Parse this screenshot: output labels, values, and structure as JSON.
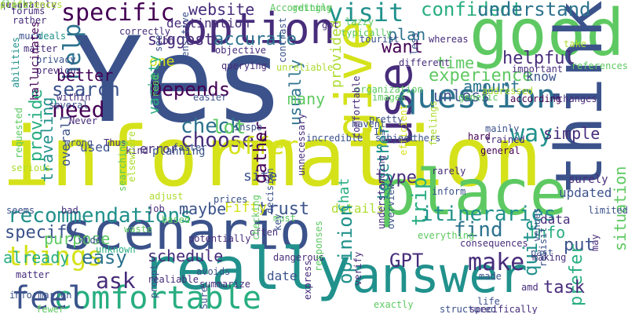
{
  "colors": {
    "background": "#ffffff",
    "palette": [
      "#440154",
      "#472d7b",
      "#3b528b",
      "#2c728e",
      "#21918c",
      "#28ae80",
      "#5ec962",
      "#addc30",
      "#d5e21a"
    ]
  },
  "words": [
    {
      "text": "information",
      "color": "#d5e21a"
    },
    {
      "text": "Yes",
      "color": "#3b528b"
    },
    {
      "text": "good",
      "color": "#5ec962"
    },
    {
      "text": "scenario",
      "color": "#3b528b"
    },
    {
      "text": "place",
      "color": "#5ec962"
    },
    {
      "text": "really",
      "color": "#21918c"
    },
    {
      "text": "answer",
      "color": "#21918c"
    },
    {
      "text": "think",
      "color": "#3b528b"
    },
    {
      "text": "give",
      "color": "#d5e21a"
    },
    {
      "text": "use",
      "color": "#472d7b"
    },
    {
      "text": "option",
      "color": "#472d7b"
    },
    {
      "text": "question",
      "color": "#2c728e"
    },
    {
      "text": "comfortable",
      "color": "#28ae80"
    },
    {
      "text": "feel",
      "color": "#3b528b"
    },
    {
      "text": "things",
      "color": "#d5e21a"
    },
    {
      "text": "specific",
      "color": "#440154"
    },
    {
      "text": "website",
      "color": "#472d7b"
    },
    {
      "text": "visit",
      "color": "#21918c"
    },
    {
      "text": "confident",
      "color": "#28ae80"
    },
    {
      "text": "understand",
      "color": "#2c728e"
    },
    {
      "text": "destination",
      "color": "#472d7b"
    },
    {
      "text": "plan",
      "color": "#2c728e"
    },
    {
      "text": "accurate",
      "color": "#2c728e"
    },
    {
      "text": "suggest",
      "color": "#472d7b"
    },
    {
      "text": "help",
      "color": "#2c728e"
    },
    {
      "text": "provide",
      "color": "#28ae80"
    },
    {
      "text": "search",
      "color": "#3b528b"
    },
    {
      "text": "need",
      "color": "#440154"
    },
    {
      "text": "better",
      "color": "#440154"
    },
    {
      "text": "one",
      "color": "#d5e21a"
    },
    {
      "text": "variety",
      "color": "#28ae80"
    },
    {
      "text": "Depends",
      "color": "#440154"
    },
    {
      "text": "experience",
      "color": "#5ec962"
    },
    {
      "text": "want",
      "color": "#440154"
    },
    {
      "text": "time",
      "color": "#5ec962"
    },
    {
      "text": "helpful",
      "color": "#472d7b"
    },
    {
      "text": "amount",
      "color": "#2c728e"
    },
    {
      "text": "know",
      "color": "#3b528b"
    },
    {
      "text": "usually",
      "color": "#2c728e"
    },
    {
      "text": "provided",
      "color": "#addc30"
    },
    {
      "text": "unless",
      "color": "#3b528b"
    },
    {
      "text": "many",
      "color": "#5ec962"
    },
    {
      "text": "check",
      "color": "#2c728e"
    },
    {
      "text": "choose",
      "color": "#472d7b"
    },
    {
      "text": "offer",
      "color": "#d5e21a"
    },
    {
      "text": "lot",
      "color": "#5ec962"
    },
    {
      "text": "way",
      "color": "#21918c"
    },
    {
      "text": "simple",
      "color": "#472d7b"
    },
    {
      "text": "trip",
      "color": "#28ae80"
    },
    {
      "text": "type",
      "color": "#472d7b"
    },
    {
      "text": "itineraries",
      "color": "#21918c"
    },
    {
      "text": "recommendations",
      "color": "#21918c"
    },
    {
      "text": "trust",
      "color": "#3b528b"
    },
    {
      "text": "details",
      "color": "#addc30"
    },
    {
      "text": "maybe",
      "color": "#3b528b"
    },
    {
      "text": "Fifty",
      "color": "#d5e21a"
    },
    {
      "text": "site",
      "color": "#3b528b"
    },
    {
      "text": "gather",
      "color": "#440154"
    },
    {
      "text": "Chat",
      "color": "#28ae80"
    },
    {
      "text": "GPT",
      "color": "#472d7b"
    },
    {
      "text": "find",
      "color": "#2c728e"
    },
    {
      "text": "make",
      "color": "#472d7b"
    },
    {
      "text": "opinion",
      "color": "#21918c"
    },
    {
      "text": "info",
      "color": "#28ae80"
    },
    {
      "text": "data",
      "color": "#472d7b"
    },
    {
      "text": "put",
      "color": "#3b528b"
    },
    {
      "text": "quite",
      "color": "#21918c"
    },
    {
      "text": "prefer",
      "color": "#28ae80"
    },
    {
      "text": "task",
      "color": "#472d7b"
    },
    {
      "text": "date",
      "color": "#3b528b"
    },
    {
      "text": "schedule",
      "color": "#472d7b"
    },
    {
      "text": "easy",
      "color": "#2c728e"
    },
    {
      "text": "ask",
      "color": "#472d7b"
    },
    {
      "text": "specify",
      "color": "#3b528b"
    },
    {
      "text": "purpose",
      "color": "#5ec962"
    },
    {
      "text": "already",
      "color": "#28ae80"
    },
    {
      "text": "used",
      "color": "#3b528b"
    },
    {
      "text": "traveling",
      "color": "#21918c"
    },
    {
      "text": "overall",
      "color": "#3b528b"
    },
    {
      "text": "error",
      "color": "#472d7b"
    },
    {
      "text": "d",
      "color": "#440154"
    },
    {
      "text": "s",
      "color": "#21918c"
    },
    {
      "text": "together",
      "color": "#21918c"
    },
    {
      "text": "situation",
      "color": "#5ec962"
    },
    {
      "text": "updated",
      "color": "#3b528b"
    },
    {
      "text": "surely",
      "color": "#472d7b"
    },
    {
      "text": "planning",
      "color": "#3b528b"
    },
    {
      "text": "Thus",
      "color": "#472d7b"
    },
    {
      "text": "wrong",
      "color": "#3b528b"
    },
    {
      "text": "faster",
      "color": "#3b528b"
    },
    {
      "text": "Never",
      "color": "#472d7b"
    },
    {
      "text": "inspo",
      "color": "#3b528b"
    },
    {
      "text": "havent",
      "color": "#3b528b"
    },
    {
      "text": "pretty",
      "color": "#3b528b"
    },
    {
      "text": "images",
      "color": "#5ec962"
    },
    {
      "text": "organization",
      "color": "#5ec962"
    },
    {
      "text": "addressed",
      "color": "#addc30"
    },
    {
      "text": "according",
      "color": "#440154"
    },
    {
      "text": "changes",
      "color": "#472d7b"
    },
    {
      "text": "generic",
      "color": "#5ec962"
    },
    {
      "text": "mainly",
      "color": "#3b528b"
    },
    {
      "text": "trained",
      "color": "#472d7b"
    },
    {
      "text": "hard",
      "color": "#440154"
    },
    {
      "text": "general",
      "color": "#440154"
    },
    {
      "text": "rarely",
      "color": "#472d7b"
    },
    {
      "text": "efficient",
      "color": "#d5e21a"
    },
    {
      "text": "others",
      "color": "#3b528b"
    },
    {
      "text": "subject",
      "color": "#3b528b"
    },
    {
      "text": "Im",
      "color": "#3b528b"
    },
    {
      "text": "forums",
      "color": "#472d7b"
    },
    {
      "text": "rather",
      "color": "#472d7b"
    },
    {
      "text": "deals",
      "color": "#21918c"
    },
    {
      "text": "much",
      "color": "#3b528b"
    },
    {
      "text": "matter",
      "color": "#472d7b"
    },
    {
      "text": "privacy",
      "color": "#3b528b"
    },
    {
      "text": "previous",
      "color": "#472d7b"
    },
    {
      "text": "hallucinates",
      "color": "#440154"
    },
    {
      "text": "abilities",
      "color": "#21918c"
    },
    {
      "text": "within",
      "color": "#472d7b"
    },
    {
      "text": "several",
      "color": "#3b528b"
    },
    {
      "text": "serious",
      "color": "#addc30"
    },
    {
      "text": "requested",
      "color": "#5ec962"
    },
    {
      "text": "seems",
      "color": "#3b528b"
    },
    {
      "text": "bad",
      "color": "#472d7b"
    },
    {
      "text": "wide",
      "color": "#3b528b"
    },
    {
      "text": "unknown",
      "color": "#28ae80"
    },
    {
      "text": "matter",
      "color": "#472d7b"
    },
    {
      "text": "informarion",
      "color": "#3b528b"
    },
    {
      "text": "fewer",
      "color": "#5ec962"
    },
    {
      "text": "kind",
      "color": "#472d7b"
    },
    {
      "text": "elsewhere",
      "color": "#addc30"
    },
    {
      "text": "searching",
      "color": "#5ec962"
    },
    {
      "text": "adjust",
      "color": "#addc30"
    },
    {
      "text": "job",
      "color": "#472d7b"
    },
    {
      "text": "based",
      "color": "#5ec962"
    },
    {
      "text": "waste",
      "color": "#5ec962"
    },
    {
      "text": "realiable",
      "color": "#472d7b"
    },
    {
      "text": "prompt",
      "color": "#3b528b"
    },
    {
      "text": "potentially",
      "color": "#472d7b"
    },
    {
      "text": "prices",
      "color": "#3b528b"
    },
    {
      "text": "decision",
      "color": "#3b528b"
    },
    {
      "text": "often",
      "color": "#472d7b"
    },
    {
      "text": "checking",
      "color": "#5ec962"
    },
    {
      "text": "dangerous",
      "color": "#472d7b"
    },
    {
      "text": "avoids",
      "color": "#3b528b"
    },
    {
      "text": "Sure",
      "color": "#3b528b"
    },
    {
      "text": "summarize",
      "color": "#472d7b"
    },
    {
      "text": "must",
      "color": "#5ec962"
    },
    {
      "text": "key",
      "color": "#3b528b"
    },
    {
      "text": "express",
      "color": "#472d7b"
    },
    {
      "text": "responses",
      "color": "#5ec962"
    },
    {
      "text": "verify",
      "color": "#472d7b"
    },
    {
      "text": "exactly",
      "color": "#5ec962"
    },
    {
      "text": "structured",
      "color": "#3b528b"
    },
    {
      "text": "specifically",
      "color": "#472d7b"
    },
    {
      "text": "understanding",
      "color": "#472d7b"
    },
    {
      "text": "overview",
      "color": "#3b528b"
    },
    {
      "text": "everything",
      "color": "#5ec962"
    },
    {
      "text": "made",
      "color": "#3b528b"
    },
    {
      "text": "amd",
      "color": "#472d7b"
    },
    {
      "text": "life",
      "color": "#3b528b"
    },
    {
      "text": "past",
      "color": "#3b528b"
    },
    {
      "text": "making",
      "color": "#472d7b"
    },
    {
      "text": "revisit",
      "color": "#3b528b"
    },
    {
      "text": "consequences",
      "color": "#472d7b"
    },
    {
      "text": "venues",
      "color": "#3b528b"
    },
    {
      "text": "may",
      "color": "#472d7b"
    },
    {
      "text": "limited",
      "color": "#3b528b"
    },
    {
      "text": "feelings",
      "color": "#addc30"
    },
    {
      "text": "inform",
      "color": "#3b528b"
    },
    {
      "text": "unnecessary",
      "color": "#472d7b"
    },
    {
      "text": "incredible",
      "color": "#3b528b"
    },
    {
      "text": "unreliable",
      "color": "#addc30"
    },
    {
      "text": "querying",
      "color": "#472d7b"
    },
    {
      "text": "contrast",
      "color": "#3b528b"
    },
    {
      "text": "read",
      "color": "#5ec962"
    },
    {
      "text": "easier",
      "color": "#3b528b"
    },
    {
      "text": "see",
      "color": "#3b528b"
    },
    {
      "text": "sensitive",
      "color": "#3b528b"
    },
    {
      "text": "objective",
      "color": "#472d7b"
    },
    {
      "text": "correctly",
      "color": "#472d7b"
    },
    {
      "text": "tbh",
      "color": "#472d7b"
    },
    {
      "text": "Accordingly",
      "color": "#5ec962"
    },
    {
      "text": "getting",
      "color": "#5ec962"
    },
    {
      "text": "got",
      "color": "#472d7b"
    },
    {
      "text": "typically",
      "color": "#5ec962"
    },
    {
      "text": "lazzy",
      "color": "#5ec962"
    },
    {
      "text": "tourist",
      "color": "#3b528b"
    },
    {
      "text": "whereas",
      "color": "#472d7b"
    },
    {
      "text": "less",
      "color": "#3b528b"
    },
    {
      "text": "different",
      "color": "#472d7b"
    },
    {
      "text": "important",
      "color": "#472d7b"
    },
    {
      "text": "references",
      "color": "#5ec962"
    },
    {
      "text": "take",
      "color": "#addc30"
    },
    {
      "text": "comfortable",
      "color": "#472d7b"
    },
    {
      "text": "quick",
      "color": "#3b528b"
    },
    {
      "text": "flight",
      "color": "#5ec962"
    },
    {
      "text": "separately",
      "color": "#472d7b"
    },
    {
      "text": "preferences",
      "color": "#addc30"
    }
  ]
}
